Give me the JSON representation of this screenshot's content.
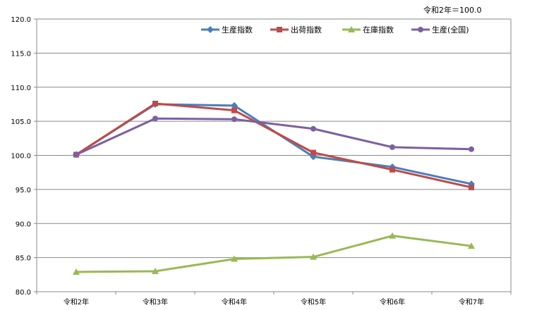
{
  "base_note": "令和2年＝100.0",
  "chart_data": {
    "type": "line",
    "categories": [
      "令和2年",
      "令和3年",
      "令和4年",
      "令和5年",
      "令和6年",
      "令和7年"
    ],
    "ylim": [
      80.0,
      120.0
    ],
    "yticks": [
      "120.0",
      "115.0",
      "110.0",
      "105.0",
      "100.0",
      "95.0",
      "90.0",
      "85.0",
      "80.0"
    ],
    "ytick_values": [
      120,
      115,
      110,
      105,
      100,
      95,
      90,
      85,
      80
    ],
    "grid": "horizontal",
    "legend_position": "top-right",
    "series": [
      {
        "name": "生産指数",
        "color": "#4a7ebb",
        "marker": "diamond",
        "values": [
          100.1,
          107.5,
          107.3,
          99.8,
          98.3,
          95.8
        ]
      },
      {
        "name": "出荷指数",
        "color": "#be4b48",
        "marker": "square",
        "values": [
          100.1,
          107.6,
          106.6,
          100.4,
          97.9,
          95.3
        ]
      },
      {
        "name": "在庫指数",
        "color": "#98b954",
        "marker": "triangle",
        "values": [
          82.9,
          83.0,
          84.8,
          85.1,
          88.2,
          86.7
        ]
      },
      {
        "name": "生産(全国)",
        "color": "#7d60a0",
        "marker": "circle",
        "values": [
          100.1,
          105.4,
          105.3,
          103.9,
          101.2,
          100.9
        ]
      }
    ]
  }
}
